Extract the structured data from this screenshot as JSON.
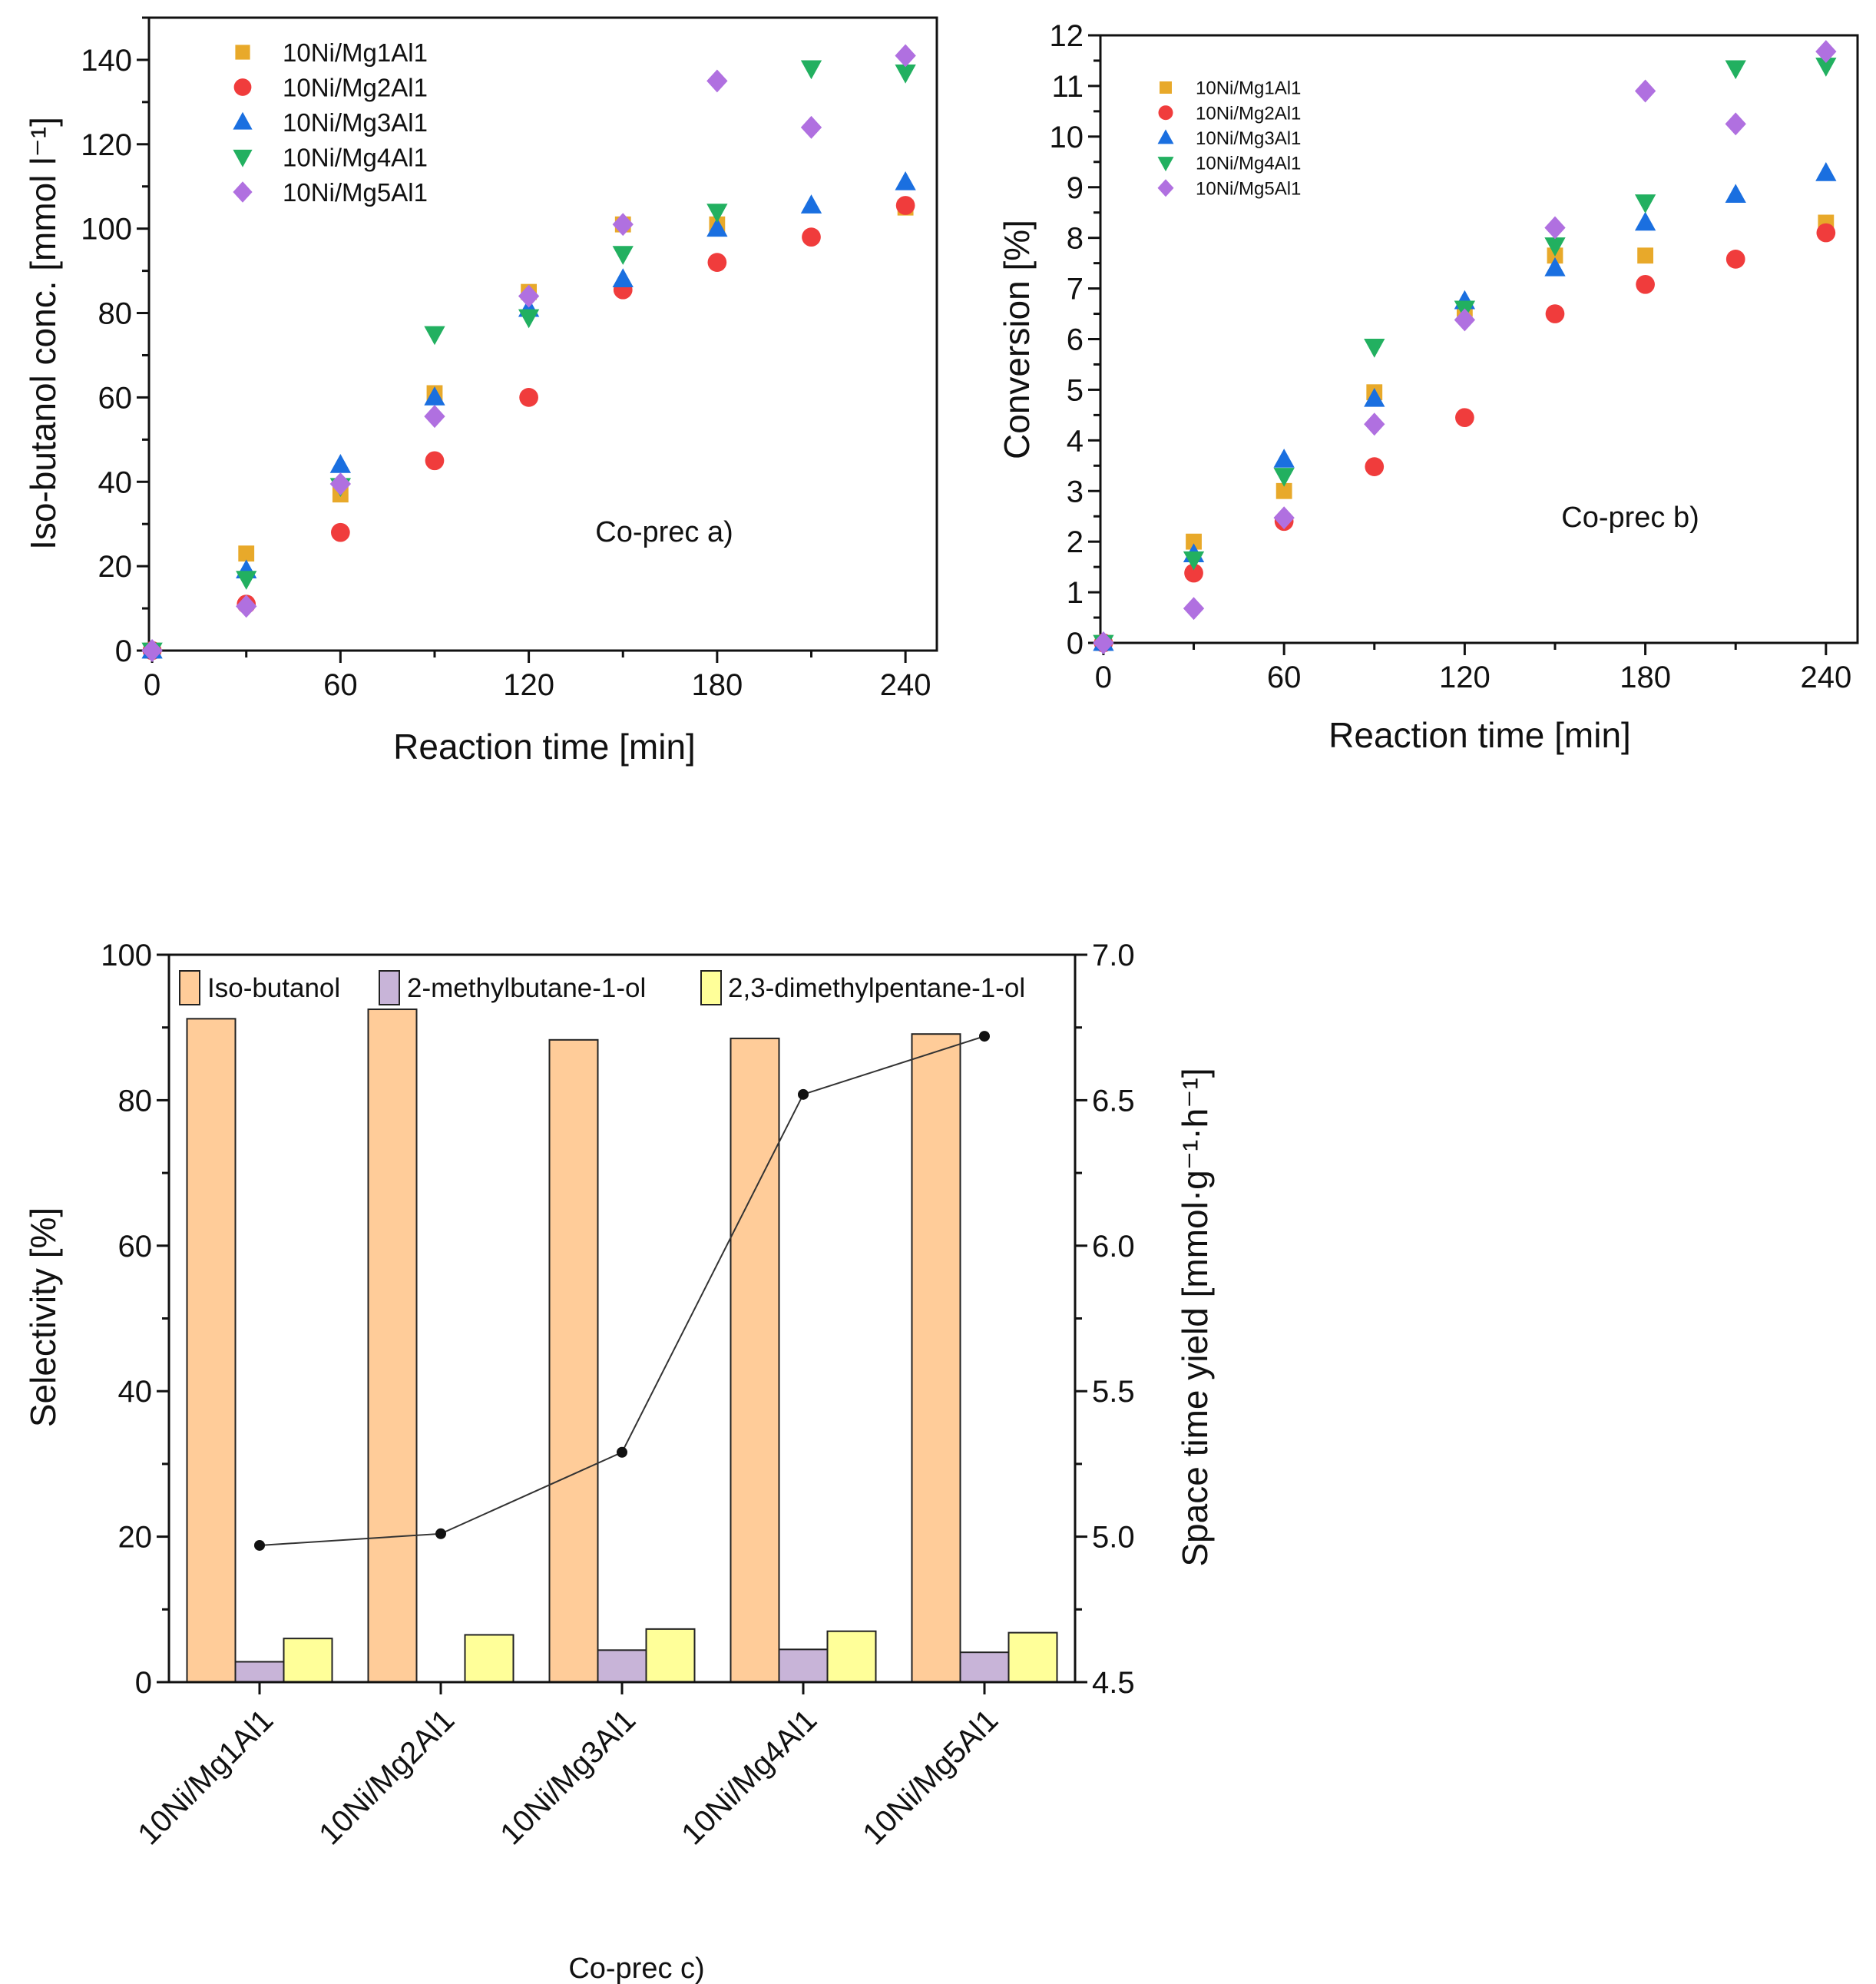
{
  "colors": {
    "10Ni/Mg1Al1": "#E8A92A",
    "10Ni/Mg2Al1": "#F03C3C",
    "10Ni/Mg3Al1": "#1A6FE0",
    "10Ni/Mg4Al1": "#22B060",
    "10Ni/Mg5Al1": "#B070E0",
    "Iso-butanol": "#FFCC99",
    "2-methylbutane-1-ol": "#C8B4D8",
    "2,3-dimethylpentane-1-ol": "#FFFF99",
    "sty_line": "#333333"
  },
  "chart_data": [
    {
      "type": "scatter",
      "annotation": "Co-prec a)",
      "xlabel": "Reaction time [min]",
      "ylabel": "Iso-butanol conc. [mmol l⁻¹]",
      "xlim": [
        -1,
        250
      ],
      "ylim": [
        0,
        150
      ],
      "xticks": [
        0,
        60,
        120,
        180,
        240
      ],
      "yticks": [
        0,
        20,
        40,
        60,
        80,
        100,
        120,
        140
      ],
      "legend": "top-left",
      "grid": false,
      "x": [
        0,
        30,
        60,
        90,
        120,
        150,
        180,
        210,
        240
      ],
      "series": [
        {
          "name": "10Ni/Mg1Al1",
          "marker": "square",
          "values": [
            0,
            23,
            37,
            61,
            85,
            101,
            101,
            null,
            105
          ]
        },
        {
          "name": "10Ni/Mg2Al1",
          "marker": "circle",
          "values": [
            0,
            11,
            28,
            45,
            60,
            85.5,
            92,
            98,
            105.5
          ]
        },
        {
          "name": "10Ni/Mg3Al1",
          "marker": "triangle-up",
          "values": [
            0,
            19,
            44,
            60,
            81,
            88,
            100,
            105.5,
            111
          ]
        },
        {
          "name": "10Ni/Mg4Al1",
          "marker": "triangle-down",
          "values": [
            0,
            17,
            39,
            75,
            79,
            94,
            104,
            138,
            137
          ]
        },
        {
          "name": "10Ni/Mg5Al1",
          "marker": "diamond",
          "values": [
            0,
            10.5,
            39.5,
            55.5,
            84,
            101,
            135,
            124,
            141
          ]
        }
      ]
    },
    {
      "type": "scatter",
      "annotation": "Co-prec b)",
      "xlabel": "Reaction time [min]",
      "ylabel": "Conversion [%]",
      "xlim": [
        -1,
        250.5
      ],
      "ylim": [
        0,
        12
      ],
      "xticks": [
        0,
        60,
        120,
        180,
        240
      ],
      "yticks": [
        0,
        1,
        2,
        3,
        4,
        5,
        6,
        7,
        8,
        9,
        10,
        11,
        12
      ],
      "legend": "top-left",
      "grid": false,
      "x": [
        0,
        30,
        60,
        90,
        120,
        150,
        180,
        210,
        240
      ],
      "series": [
        {
          "name": "10Ni/Mg1Al1",
          "marker": "square",
          "values": [
            0,
            2.0,
            3.0,
            4.95,
            6.6,
            7.65,
            7.65,
            null,
            8.3
          ]
        },
        {
          "name": "10Ni/Mg2Al1",
          "marker": "circle",
          "values": [
            0,
            1.38,
            2.4,
            3.48,
            4.45,
            6.5,
            7.08,
            7.58,
            8.1
          ]
        },
        {
          "name": "10Ni/Mg3Al1",
          "marker": "triangle-up",
          "values": [
            0,
            1.75,
            3.62,
            4.82,
            6.75,
            7.4,
            8.3,
            8.85,
            9.28
          ]
        },
        {
          "name": "10Ni/Mg4Al1",
          "marker": "triangle-down",
          "values": [
            0,
            1.65,
            3.3,
            5.85,
            6.6,
            7.85,
            8.7,
            11.35,
            11.4
          ]
        },
        {
          "name": "10Ni/Mg5Al1",
          "marker": "diamond",
          "values": [
            0,
            0.68,
            2.47,
            4.32,
            6.38,
            8.2,
            10.9,
            10.25,
            11.68
          ]
        }
      ]
    },
    {
      "type": "bar",
      "annotation": "Co-prec c)",
      "xlabel": "",
      "ylabel": "Selectivity [%]",
      "ylabel_right": "Space time yield [mmol·g⁻¹·h⁻¹]",
      "ylim": [
        0,
        100
      ],
      "ylim_right": [
        4.5,
        7.0
      ],
      "yticks": [
        0,
        20,
        40,
        60,
        80,
        100
      ],
      "yticks_right": [
        "4.5",
        "5.0",
        "5.5",
        "6.0",
        "6.5",
        "7.0"
      ],
      "legend": "top",
      "grid": false,
      "categories": [
        "10Ni/Mg1Al1",
        "10Ni/Mg2Al1",
        "10Ni/Mg3Al1",
        "10Ni/Mg4Al1",
        "10Ni/Mg5Al1"
      ],
      "series": [
        {
          "name": "Iso-butanol",
          "values": [
            91.2,
            92.5,
            88.3,
            88.5,
            89.1
          ]
        },
        {
          "name": "2-methylbutane-1-ol",
          "values": [
            2.8,
            0,
            4.4,
            4.5,
            4.1
          ]
        },
        {
          "name": "2,3-dimethylpentane-1-ol",
          "values": [
            6.0,
            6.5,
            7.3,
            7.0,
            6.8
          ]
        }
      ],
      "line_right": {
        "type": "line",
        "values": [
          4.97,
          5.01,
          5.29,
          6.52,
          6.72
        ]
      }
    }
  ]
}
